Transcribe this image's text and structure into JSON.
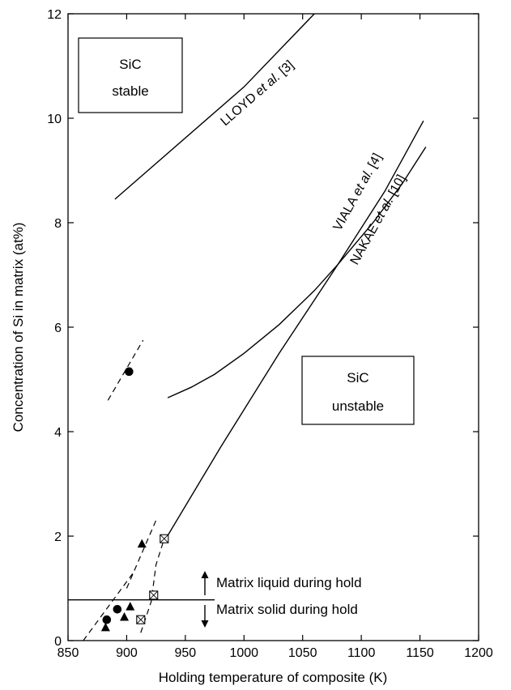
{
  "chart_data": {
    "type": "line",
    "xlabel": "Holding temperature of composite (K)",
    "ylabel": "Concentration of Si in matrix (at%)",
    "xlim": [
      850,
      1200
    ],
    "ylim": [
      0,
      12
    ],
    "xticks": [
      850,
      900,
      950,
      1000,
      1050,
      1100,
      1150,
      1200
    ],
    "yticks": [
      0,
      2,
      4,
      6,
      8,
      10,
      12
    ],
    "grid": false,
    "curves": [
      {
        "name_prefix": "LLOYD",
        "name_italic": "et al.",
        "name_suffix": " [3]",
        "points": [
          [
            890,
            8.45
          ],
          [
            1000,
            10.6
          ],
          [
            1060,
            12.0
          ]
        ]
      },
      {
        "name_prefix": "VIALA",
        "name_italic": "et al.",
        "name_suffix": " [4]",
        "points": [
          [
            932,
            1.9
          ],
          [
            980,
            3.7
          ],
          [
            1030,
            5.5
          ],
          [
            1080,
            7.2
          ],
          [
            1120,
            8.6
          ],
          [
            1153,
            9.95
          ]
        ]
      },
      {
        "name_prefix": "NAKAE",
        "name_italic": "et al.",
        "name_suffix": " [10]",
        "points": [
          [
            935,
            4.65
          ],
          [
            955,
            4.85
          ],
          [
            975,
            5.1
          ],
          [
            1000,
            5.5
          ],
          [
            1030,
            6.05
          ],
          [
            1060,
            6.7
          ],
          [
            1080,
            7.2
          ],
          [
            1110,
            8.0
          ],
          [
            1135,
            8.75
          ],
          [
            1155,
            9.45
          ]
        ]
      }
    ],
    "dashed_segments": [
      [
        [
          863,
          0
        ],
        [
          905,
          1.28
        ]
      ],
      [
        [
          900,
          1.0
        ],
        [
          925,
          2.3
        ]
      ],
      [
        [
          884,
          4.6
        ],
        [
          914,
          5.75
        ]
      ],
      [
        [
          912,
          0.15
        ],
        [
          921,
          0.75
        ],
        [
          925,
          1.45
        ],
        [
          932,
          1.95
        ]
      ]
    ],
    "scatter_series": [
      {
        "marker": "circle",
        "points": [
          [
            883,
            0.4
          ],
          [
            892,
            0.6
          ],
          [
            902,
            5.15
          ]
        ]
      },
      {
        "marker": "triangle",
        "points": [
          [
            882,
            0.25
          ],
          [
            898,
            0.45
          ],
          [
            903,
            0.65
          ],
          [
            913,
            1.85
          ]
        ]
      },
      {
        "marker": "crossed-square",
        "points": [
          [
            912,
            0.4
          ],
          [
            923,
            0.87
          ],
          [
            932,
            1.95
          ]
        ]
      }
    ],
    "reference_line": {
      "y": 0.78,
      "x_start": 850,
      "x_end": 975
    },
    "annotations": {
      "stable_box": [
        "SiC",
        "stable"
      ],
      "unstable_box": [
        "SiC",
        "unstable"
      ],
      "liquid": "Matrix liquid during hold",
      "solid": "Matrix solid during hold"
    }
  }
}
